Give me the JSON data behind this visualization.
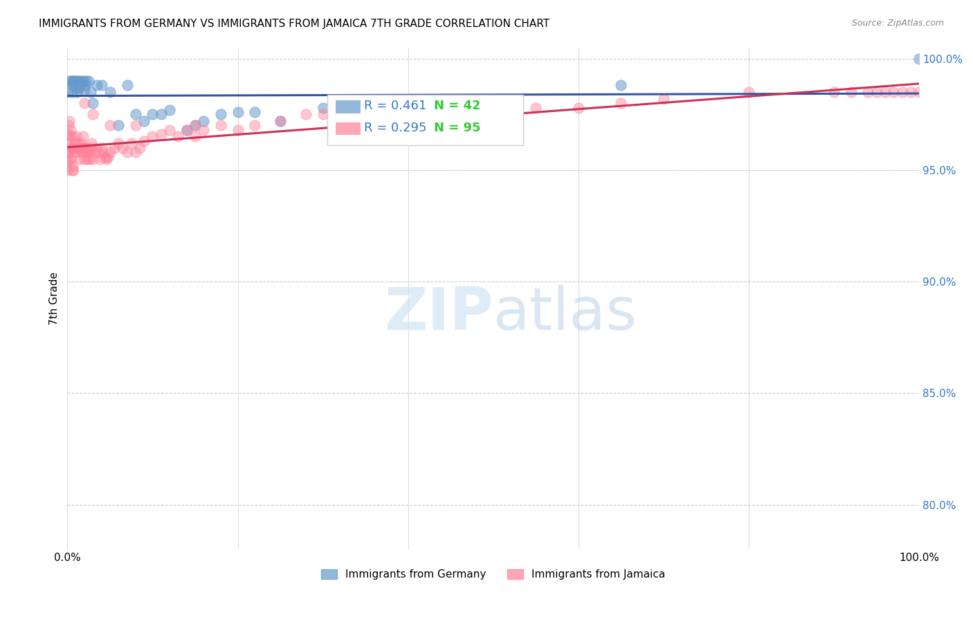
{
  "title": "IMMIGRANTS FROM GERMANY VS IMMIGRANTS FROM JAMAICA 7TH GRADE CORRELATION CHART",
  "source": "Source: ZipAtlas.com",
  "xlabel": "",
  "ylabel": "7th Grade",
  "xlim": [
    0,
    1.0
  ],
  "ylim": [
    0.78,
    1.005
  ],
  "yticks": [
    0.8,
    0.85,
    0.9,
    0.95,
    1.0
  ],
  "ytick_labels": [
    "80.0%",
    "85.0%",
    "90.0%",
    "95.0%",
    "100.0%"
  ],
  "xticks": [
    0,
    0.2,
    0.4,
    0.6,
    0.8,
    1.0
  ],
  "xtick_labels": [
    "0.0%",
    "",
    "",
    "",
    "",
    "100.0%"
  ],
  "germany_R": 0.461,
  "germany_N": 42,
  "jamaica_R": 0.295,
  "jamaica_N": 95,
  "germany_color": "#6699CC",
  "jamaica_color": "#FF8099",
  "germany_trend_color": "#3355AA",
  "jamaica_trend_color": "#CC3355",
  "legend_label_germany": "Immigrants from Germany",
  "legend_label_jamaica": "Immigrants from Jamaica",
  "watermark": "ZIPatlas",
  "background_color": "#ffffff",
  "germany_x": [
    0.0,
    0.003,
    0.004,
    0.005,
    0.006,
    0.007,
    0.008,
    0.009,
    0.01,
    0.011,
    0.012,
    0.013,
    0.014,
    0.015,
    0.016,
    0.018,
    0.02,
    0.021,
    0.022,
    0.025,
    0.027,
    0.03,
    0.035,
    0.04,
    0.05,
    0.06,
    0.07,
    0.08,
    0.09,
    0.1,
    0.11,
    0.12,
    0.14,
    0.15,
    0.16,
    0.18,
    0.2,
    0.22,
    0.25,
    0.3,
    0.65,
    1.0
  ],
  "germany_y": [
    0.985,
    0.99,
    0.99,
    0.985,
    0.988,
    0.99,
    0.99,
    0.99,
    0.987,
    0.985,
    0.99,
    0.99,
    0.987,
    0.988,
    0.99,
    0.99,
    0.986,
    0.988,
    0.99,
    0.99,
    0.985,
    0.98,
    0.988,
    0.988,
    0.985,
    0.97,
    0.988,
    0.975,
    0.972,
    0.975,
    0.975,
    0.977,
    0.968,
    0.97,
    0.972,
    0.975,
    0.976,
    0.976,
    0.972,
    0.978,
    0.988,
    1.0
  ],
  "jamaica_x": [
    0.0,
    0.0,
    0.0,
    0.0,
    0.0,
    0.001,
    0.001,
    0.002,
    0.002,
    0.003,
    0.003,
    0.004,
    0.004,
    0.005,
    0.005,
    0.006,
    0.006,
    0.007,
    0.007,
    0.008,
    0.009,
    0.01,
    0.011,
    0.012,
    0.013,
    0.014,
    0.015,
    0.016,
    0.017,
    0.018,
    0.019,
    0.02,
    0.021,
    0.022,
    0.023,
    0.024,
    0.025,
    0.026,
    0.027,
    0.028,
    0.03,
    0.032,
    0.034,
    0.036,
    0.038,
    0.04,
    0.042,
    0.044,
    0.046,
    0.048,
    0.05,
    0.055,
    0.06,
    0.065,
    0.07,
    0.075,
    0.08,
    0.085,
    0.09,
    0.1,
    0.11,
    0.12,
    0.13,
    0.14,
    0.15,
    0.16,
    0.18,
    0.2,
    0.22,
    0.25,
    0.28,
    0.3,
    0.35,
    0.4,
    0.45,
    0.5,
    0.55,
    0.6,
    0.65,
    0.7,
    0.8,
    0.9,
    0.92,
    0.94,
    0.95,
    0.96,
    0.97,
    0.98,
    0.99,
    1.0,
    0.02,
    0.03,
    0.05,
    0.08,
    0.15
  ],
  "jamaica_y": [
    0.966,
    0.962,
    0.958,
    0.954,
    0.95,
    0.97,
    0.958,
    0.972,
    0.96,
    0.965,
    0.955,
    0.968,
    0.955,
    0.96,
    0.95,
    0.965,
    0.952,
    0.96,
    0.95,
    0.958,
    0.962,
    0.965,
    0.96,
    0.962,
    0.958,
    0.955,
    0.96,
    0.962,
    0.958,
    0.965,
    0.96,
    0.955,
    0.96,
    0.958,
    0.955,
    0.96,
    0.958,
    0.955,
    0.96,
    0.962,
    0.955,
    0.958,
    0.96,
    0.958,
    0.955,
    0.96,
    0.958,
    0.956,
    0.955,
    0.956,
    0.958,
    0.96,
    0.962,
    0.96,
    0.958,
    0.962,
    0.958,
    0.96,
    0.963,
    0.965,
    0.966,
    0.968,
    0.965,
    0.968,
    0.97,
    0.968,
    0.97,
    0.968,
    0.97,
    0.972,
    0.975,
    0.975,
    0.978,
    0.978,
    0.98,
    0.975,
    0.978,
    0.978,
    0.98,
    0.982,
    0.985,
    0.985,
    0.985,
    0.985,
    0.985,
    0.985,
    0.985,
    0.985,
    0.985,
    0.985,
    0.98,
    0.975,
    0.97,
    0.97,
    0.965
  ]
}
